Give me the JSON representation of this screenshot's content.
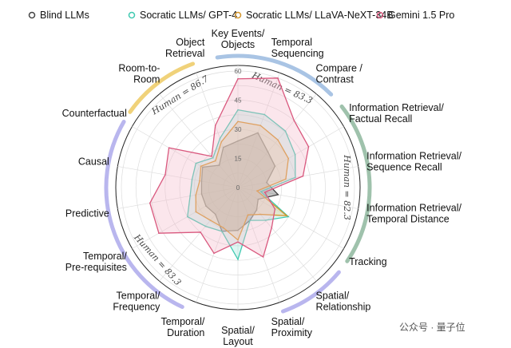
{
  "chart_data": {
    "type": "radar",
    "title": "",
    "rlim": [
      0,
      60
    ],
    "rticks": [
      0,
      15,
      30,
      45,
      60
    ],
    "legend_position": "top",
    "categories": [
      "Key Events/\nObjects",
      "Temporal\nSequencing",
      "Compare /\nContrast",
      "Information Retrieval/\nFactual Recall",
      "Information Retrieval/\nSequence Recall",
      "Information Retrieval/\nTemporal Distance",
      "Tracking",
      "Spatial/\nRelationship",
      "Spatial/\nProximity",
      "Spatial/\nLayout",
      "Temporal/\nDuration",
      "Temporal/\nFrequency",
      "Temporal/\nPre-requisites",
      "Predictive",
      "Causal",
      "Counterfactual",
      "Room-to-\nRoom",
      "Object\nRetrieval"
    ],
    "series": [
      {
        "name": "Blind LLMs",
        "color": "#444444",
        "fill": "#555555",
        "values": [
          24,
          30,
          24,
          22,
          15,
          21,
          12,
          15,
          18,
          22,
          24,
          18,
          19,
          19,
          19,
          21,
          15,
          22
        ]
      },
      {
        "name": "Socratic LLMs/ GPT-4",
        "color": "#3fc9b0",
        "fill": "#9fe7dc",
        "values": [
          40,
          40,
          38,
          34,
          30,
          12,
          30,
          22,
          18,
          37,
          24,
          26,
          30,
          25,
          24,
          25,
          20,
          27
        ]
      },
      {
        "name": "Socratic LLMs/ LLaVA-NeXT-34B",
        "color": "#d4952a",
        "fill": "#e7c98c",
        "values": [
          34,
          34,
          32,
          30,
          25,
          10,
          29,
          18,
          15,
          27,
          22,
          22,
          25,
          22,
          20,
          22,
          18,
          25
        ]
      },
      {
        "name": "Gemini 1.5 Pro",
        "color": "#d9587e",
        "fill": "#f4b6c8",
        "values": [
          56,
          60,
          45,
          42,
          34,
          14,
          22,
          27,
          38,
          28,
          36,
          30,
          47,
          46,
          38,
          41,
          21,
          34
        ]
      }
    ],
    "groups": [
      {
        "human": "Human = 83.3",
        "color": "#a9c4e4",
        "from": -9,
        "to": 45,
        "text_angle": 12
      },
      {
        "human": "Human = 82.3",
        "color": "#9fc2ac",
        "from": 52,
        "to": 124,
        "text_angle": 90
      },
      {
        "human": "",
        "color": "#b9b6ee",
        "from": 130,
        "to": 160,
        "text_angle": 0
      },
      {
        "human": "Human = 83.3",
        "color": "#b9b6ee",
        "from": 205,
        "to": 300,
        "text_angle": 235
      },
      {
        "human": "Human = 86.7",
        "color": "#f0d27a",
        "from": 305,
        "to": 340,
        "text_angle": 330
      }
    ]
  },
  "watermark": "公众号 · 量子位"
}
